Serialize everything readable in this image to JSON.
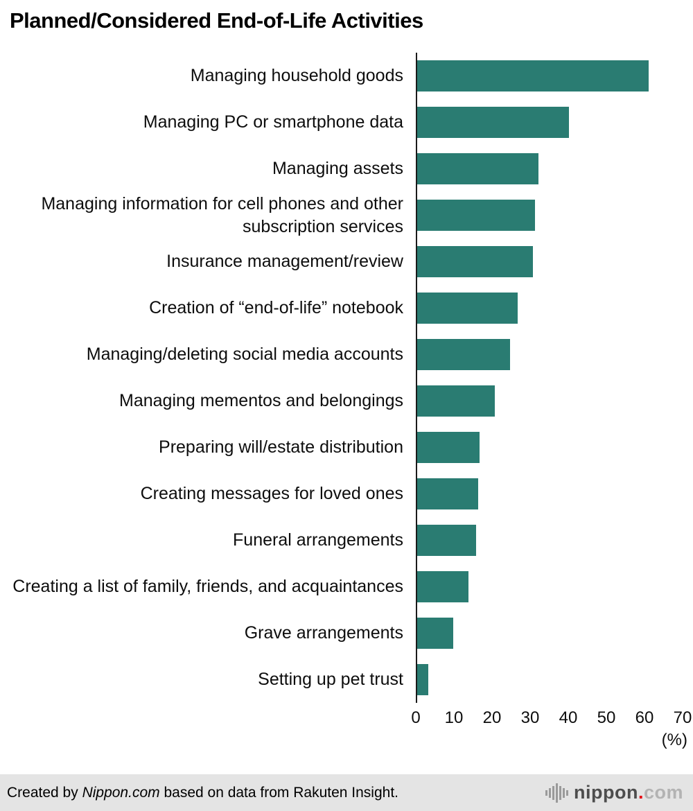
{
  "title": "Planned/Considered End-of-Life Activities",
  "chart_data": {
    "type": "bar",
    "orientation": "horizontal",
    "title": "Planned/Considered End-of-Life Activities",
    "categories": [
      "Managing household goods",
      "Managing PC or smartphone data",
      "Managing assets",
      "Managing information for cell phones and other subscription services",
      "Insurance management/review",
      "Creation of “end-of-life” notebook",
      "Managing/deleting social media accounts",
      "Managing mementos and belongings",
      "Preparing will/estate distribution",
      "Creating messages for loved ones",
      "Funeral arrangements",
      "Creating a list of family, friends, and acquaintances",
      "Grave arrangements",
      "Setting up pet trust"
    ],
    "values": [
      61,
      40,
      32,
      31,
      30.5,
      26.5,
      24.5,
      20.5,
      16.5,
      16,
      15.5,
      13.5,
      9.5,
      3
    ],
    "xlim": [
      0,
      70
    ],
    "xticks": [
      0,
      10,
      20,
      30,
      40,
      50,
      60,
      70
    ],
    "axis_unit": "(%)",
    "bar_color": "#2a7c72",
    "grid": false,
    "legend": false
  },
  "footer": {
    "credit_prefix": "Created by ",
    "credit_source": "Nippon.com",
    "credit_suffix": " based on data from Rakuten Insight.",
    "logo": {
      "name": "nippon",
      "dot": ".",
      "tld": "com"
    }
  }
}
